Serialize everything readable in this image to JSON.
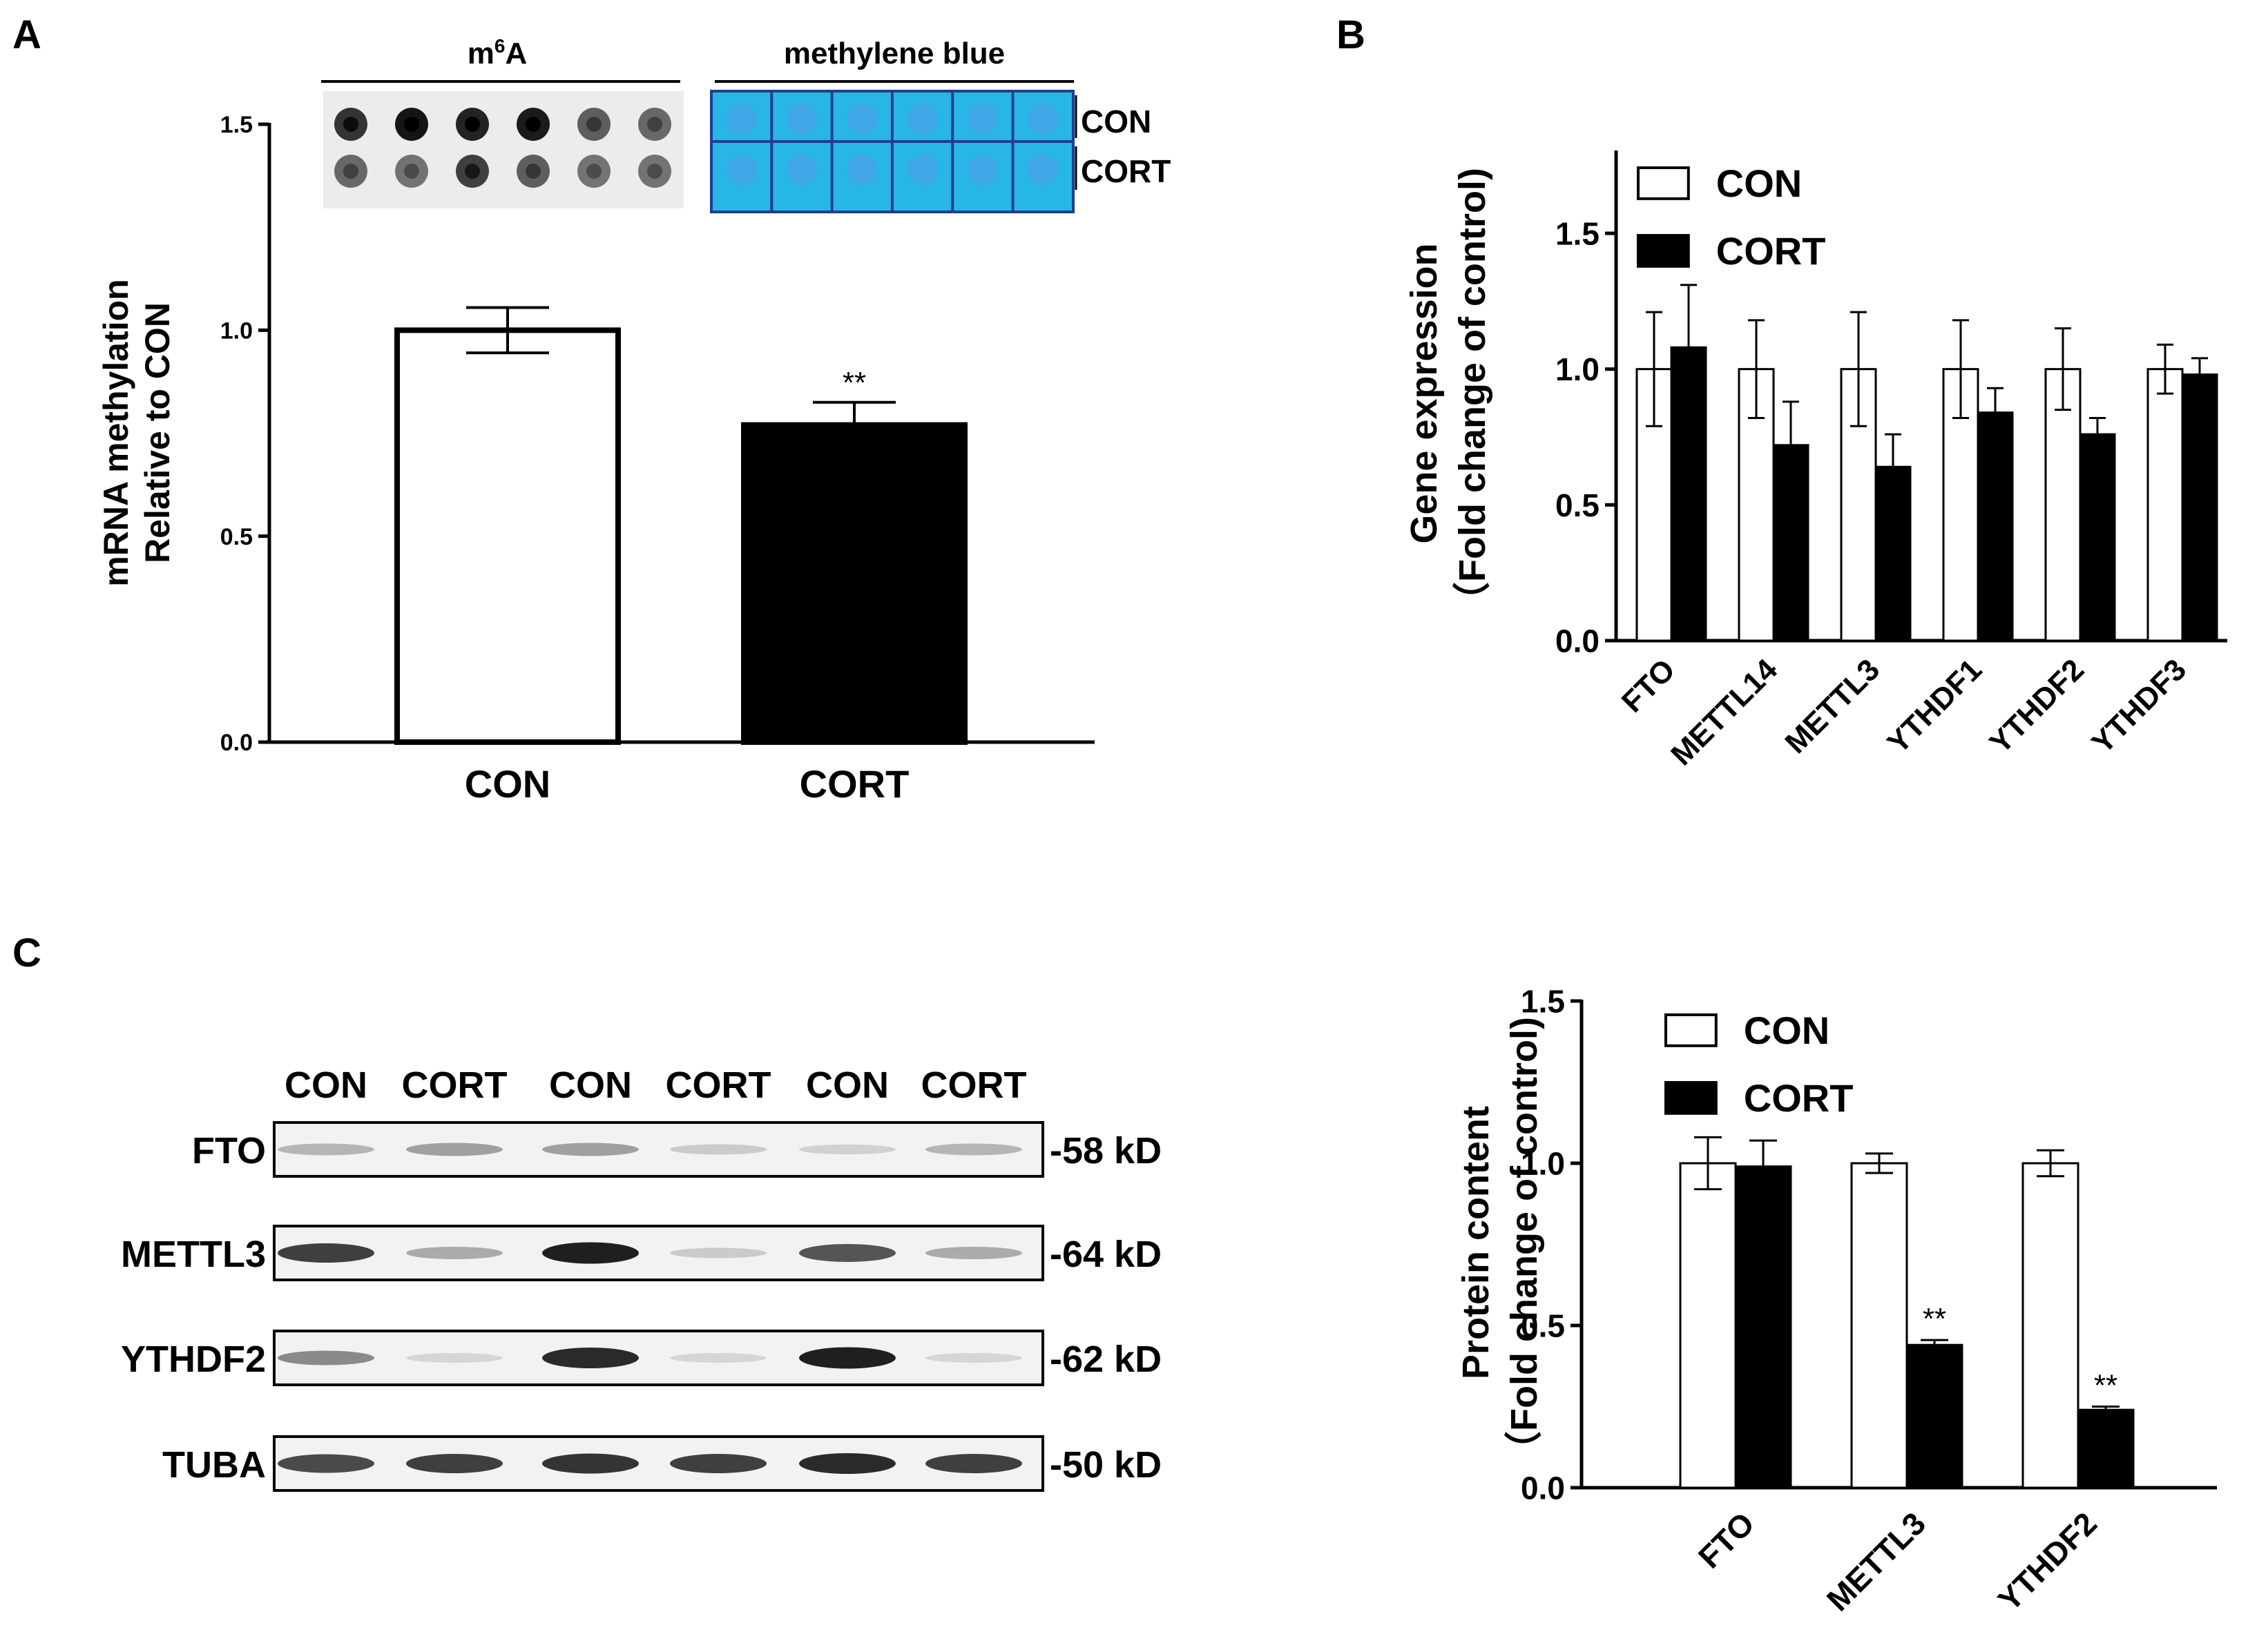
{
  "panels": {
    "A": {
      "letter": "A",
      "dot_blot_title": "m6A",
      "dot_blot_title_base": "m",
      "dot_blot_title_sup": "6",
      "dot_blot_title_end": "A",
      "stain_title": "methylene blue",
      "row_labels": [
        "CON",
        "CORT"
      ]
    },
    "B": {
      "letter": "B"
    },
    "C": {
      "letter": "C"
    }
  },
  "western": {
    "lane_labels": [
      "CON",
      "CORT",
      "CON",
      "CORT",
      "CON",
      "CORT"
    ],
    "bands": [
      {
        "protein": "FTO",
        "size": "-58 kD",
        "intensities": [
          0.25,
          0.35,
          0.35,
          0.15,
          0.12,
          0.25
        ]
      },
      {
        "protein": "METTL3",
        "size": "-64 kD",
        "intensities": [
          0.8,
          0.3,
          0.95,
          0.15,
          0.7,
          0.3
        ]
      },
      {
        "protein": "YTHDF2",
        "size": "-62 kD",
        "intensities": [
          0.45,
          0.1,
          0.9,
          0.1,
          0.95,
          0.1
        ]
      },
      {
        "protein": "TUBA",
        "size": "-50 kD",
        "intensities": [
          0.75,
          0.8,
          0.85,
          0.8,
          0.9,
          0.8
        ]
      }
    ]
  },
  "colors": {
    "con_fill": "#ffffff",
    "cort_fill": "#000000",
    "stain_blue": "#27b6e6"
  },
  "chart_data": [
    {
      "id": "A",
      "type": "bar",
      "categories": [
        "CON",
        "CORT"
      ],
      "values": [
        1.0,
        0.77
      ],
      "errors": [
        0.055,
        0.055
      ],
      "annotations": [
        "",
        "**"
      ],
      "ylabel_line1": "mRNA methylation",
      "ylabel_line2": "Relative to CON",
      "ylim": [
        0,
        1.5
      ],
      "yticks": [
        0.0,
        0.5,
        1.0,
        1.5
      ],
      "ytick_labels": [
        "0.0",
        "0.5",
        "1.0",
        "1.5"
      ]
    },
    {
      "id": "B",
      "type": "bar",
      "categories": [
        "FTO",
        "METTL14",
        "METTL3",
        "YTHDF1",
        "YTHDF2",
        "YTHDF3"
      ],
      "series": [
        {
          "name": "CON",
          "values": [
            1.0,
            1.0,
            1.0,
            1.0,
            1.0,
            1.0
          ],
          "errors": [
            0.21,
            0.18,
            0.21,
            0.18,
            0.15,
            0.09
          ]
        },
        {
          "name": "CORT",
          "values": [
            1.08,
            0.72,
            0.64,
            0.84,
            0.76,
            0.98
          ],
          "errors": [
            0.23,
            0.16,
            0.12,
            0.09,
            0.06,
            0.06
          ]
        }
      ],
      "ylabel_line1": "Gene expression",
      "ylabel_line2": "（Fold change of control)",
      "ylim": [
        0,
        1.8
      ],
      "yticks": [
        0.0,
        0.5,
        1.0,
        1.5
      ],
      "ytick_labels": [
        "0.0",
        "0.5",
        "1.0",
        "1.5"
      ],
      "legend": "top-left"
    },
    {
      "id": "C",
      "type": "bar",
      "categories": [
        "FTO",
        "METTL3",
        "YTHDF2"
      ],
      "series": [
        {
          "name": "CON",
          "values": [
            1.0,
            1.0,
            1.0
          ],
          "errors": [
            0.08,
            0.03,
            0.04
          ]
        },
        {
          "name": "CORT",
          "values": [
            0.99,
            0.44,
            0.24
          ],
          "errors": [
            0.08,
            0.015,
            0.01
          ]
        }
      ],
      "annotations": [
        "",
        "**",
        "**"
      ],
      "ylabel_line1": "Protein content",
      "ylabel_line2": "（Fold change of control)",
      "ylim": [
        0,
        1.5
      ],
      "yticks": [
        0.0,
        0.5,
        1.0,
        1.5
      ],
      "ytick_labels": [
        "0.0",
        "0.5",
        "1.0",
        "1.5"
      ],
      "legend": "top-left"
    }
  ]
}
